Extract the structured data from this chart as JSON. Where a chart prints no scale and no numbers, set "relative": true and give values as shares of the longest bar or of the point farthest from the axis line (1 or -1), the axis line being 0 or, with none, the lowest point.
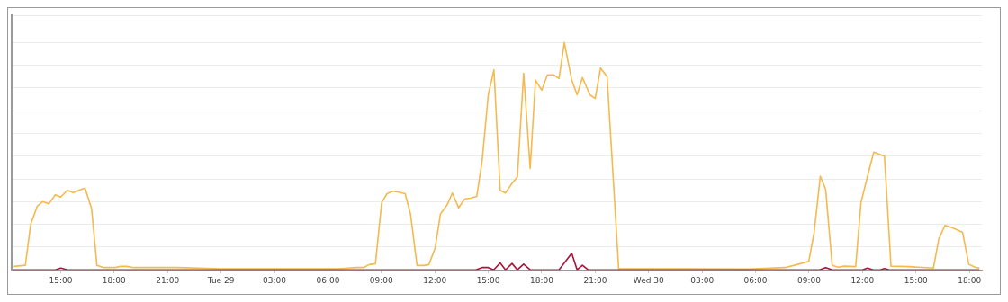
{
  "chart_data": {
    "type": "line",
    "relative": true,
    "grid": "y",
    "marker": "none",
    "legend": false,
    "xlim": [
      "--08-28T12:15",
      "--08-30T18:42"
    ],
    "xticks": [
      {
        "value": "--08-28T15:00",
        "label": "15:00"
      },
      {
        "value": "--08-28T18:00",
        "label": "18:00"
      },
      {
        "value": "--08-28T21:00",
        "label": "21:00"
      },
      {
        "value": "--08-29T00:00",
        "label": "Tue 29"
      },
      {
        "value": "--08-29T03:00",
        "label": "03:00"
      },
      {
        "value": "--08-29T06:00",
        "label": "06:00"
      },
      {
        "value": "--08-29T09:00",
        "label": "09:00"
      },
      {
        "value": "--08-29T12:00",
        "label": "12:00"
      },
      {
        "value": "--08-29T15:00",
        "label": "15:00"
      },
      {
        "value": "--08-29T18:00",
        "label": "18:00"
      },
      {
        "value": "--08-29T21:00",
        "label": "21:00"
      },
      {
        "value": "--08-30T00:00",
        "label": "Wed 30"
      },
      {
        "value": "--08-30T03:00",
        "label": "03:00"
      },
      {
        "value": "--08-30T06:00",
        "label": "06:00"
      },
      {
        "value": "--08-30T09:00",
        "label": "09:00"
      },
      {
        "value": "--08-30T12:00",
        "label": "12:00"
      },
      {
        "value": "--08-30T15:00",
        "label": "15:00"
      },
      {
        "value": "--08-30T18:00",
        "label": "18:00"
      }
    ],
    "series": [
      {
        "color": "#f5b94f",
        "x": [
          "--08-28T12:22",
          "--08-28T13:01",
          "--08-28T13:19",
          "--08-28T13:41",
          "--08-28T13:59",
          "--08-28T14:20",
          "--08-28T14:42",
          "--08-28T15:00",
          "--08-28T15:22",
          "--08-28T15:43",
          "--08-28T16:01",
          "--08-28T16:22",
          "--08-28T16:44",
          "--08-28T17:02",
          "--08-28T17:26",
          "--08-28T18:03",
          "--08-28T18:21",
          "--08-28T18:42",
          "--08-28T19:06",
          "--08-28T21:30",
          "--08-29T00:00",
          "--08-29T02:36",
          "--08-29T06:36",
          "--08-29T07:36",
          "--08-29T08:00",
          "--08-29T08:19",
          "--08-29T08:40",
          "--08-29T09:01",
          "--08-29T09:19",
          "--08-29T09:38",
          "--08-29T09:59",
          "--08-29T10:20",
          "--08-29T10:38",
          "--08-29T11:00",
          "--08-29T11:22",
          "--08-29T11:40",
          "--08-29T12:01",
          "--08-29T12:19",
          "--08-29T12:41",
          "--08-29T12:59",
          "--08-29T13:20",
          "--08-29T13:41",
          "--08-29T14:00",
          "--08-29T14:21",
          "--08-29T14:39",
          "--08-29T15:00",
          "--08-29T15:19",
          "--08-29T15:40",
          "--08-29T15:58",
          "--08-29T16:20",
          "--08-29T16:38",
          "--08-29T16:59",
          "--08-29T17:21",
          "--08-29T17:39",
          "--08-29T18:00",
          "--08-29T18:19",
          "--08-29T18:40",
          "--08-29T18:58",
          "--08-29T19:16",
          "--08-29T19:41",
          "--08-29T19:59",
          "--08-29T20:17",
          "--08-29T20:42",
          "--08-29T21:00",
          "--08-29T21:18",
          "--08-29T21:40",
          "--08-29T22:19",
          "--08-30T05:38",
          "--08-30T07:40",
          "--08-30T08:22",
          "--08-30T08:59",
          "--08-30T09:17",
          "--08-30T09:38",
          "--08-30T09:56",
          "--08-30T10:18",
          "--08-30T10:39",
          "--08-30T10:58",
          "--08-30T11:37",
          "--08-30T11:55",
          "--08-30T12:17",
          "--08-30T12:38",
          "--08-30T13:14",
          "--08-30T13:36",
          "--08-30T14:37",
          "--08-30T15:59",
          "--08-30T16:17",
          "--08-30T16:38",
          "--08-30T17:00",
          "--08-30T17:37",
          "--08-30T17:58",
          "--08-30T18:19",
          "--08-30T18:34"
        ],
        "values": [
          0.015,
          0.02,
          0.2,
          0.28,
          0.3,
          0.29,
          0.33,
          0.32,
          0.35,
          0.34,
          0.35,
          0.36,
          0.27,
          0.02,
          0.01,
          0.01,
          0.015,
          0.015,
          0.01,
          0.01,
          0.005,
          0.005,
          0.005,
          0.01,
          0.01,
          0.023,
          0.027,
          0.296,
          0.335,
          0.346,
          0.342,
          0.335,
          0.246,
          0.019,
          0.019,
          0.023,
          0.096,
          0.246,
          0.285,
          0.338,
          0.273,
          0.312,
          0.315,
          0.323,
          0.477,
          0.77,
          0.88,
          0.35,
          0.338,
          0.381,
          0.408,
          0.865,
          0.446,
          0.835,
          0.79,
          0.858,
          0.858,
          0.842,
          1,
          0.835,
          0.77,
          0.846,
          0.77,
          0.754,
          0.888,
          0.85,
          0.005,
          0.004,
          0.01,
          0.024,
          0.037,
          0.162,
          0.412,
          0.354,
          0.02,
          0.012,
          0.016,
          0.014,
          0.296,
          0.412,
          0.518,
          0.5,
          0.016,
          0.014,
          0.008,
          0.136,
          0.196,
          0.187,
          0.165,
          0.024,
          0.012,
          0.008
        ]
      },
      {
        "color": "#a8143c",
        "x": [
          "--08-28T12:18",
          "--08-28T14:42",
          "--08-28T15:00",
          "--08-28T15:24",
          "--08-29T14:18",
          "--08-29T14:39",
          "--08-29T15:00",
          "--08-29T15:18",
          "--08-29T15:40",
          "--08-29T15:58",
          "--08-29T16:20",
          "--08-29T16:38",
          "--08-29T16:59",
          "--08-29T17:21",
          "--08-29T18:58",
          "--08-29T19:41",
          "--08-29T19:59",
          "--08-29T20:17",
          "--08-29T20:36",
          "--08-30T09:36",
          "--08-30T09:56",
          "--08-30T10:18",
          "--08-30T12:00",
          "--08-30T12:17",
          "--08-30T12:36",
          "--08-30T13:00",
          "--08-30T13:14",
          "--08-30T13:30",
          "--08-30T18:34"
        ],
        "values": [
          0,
          0,
          0.008,
          0,
          0,
          0.01,
          0.01,
          0,
          0.03,
          0,
          0.028,
          0,
          0.025,
          0,
          0,
          0.073,
          0,
          0.02,
          0,
          0,
          0.01,
          0,
          0,
          0.008,
          0,
          0,
          0.006,
          0,
          0
        ]
      }
    ]
  }
}
